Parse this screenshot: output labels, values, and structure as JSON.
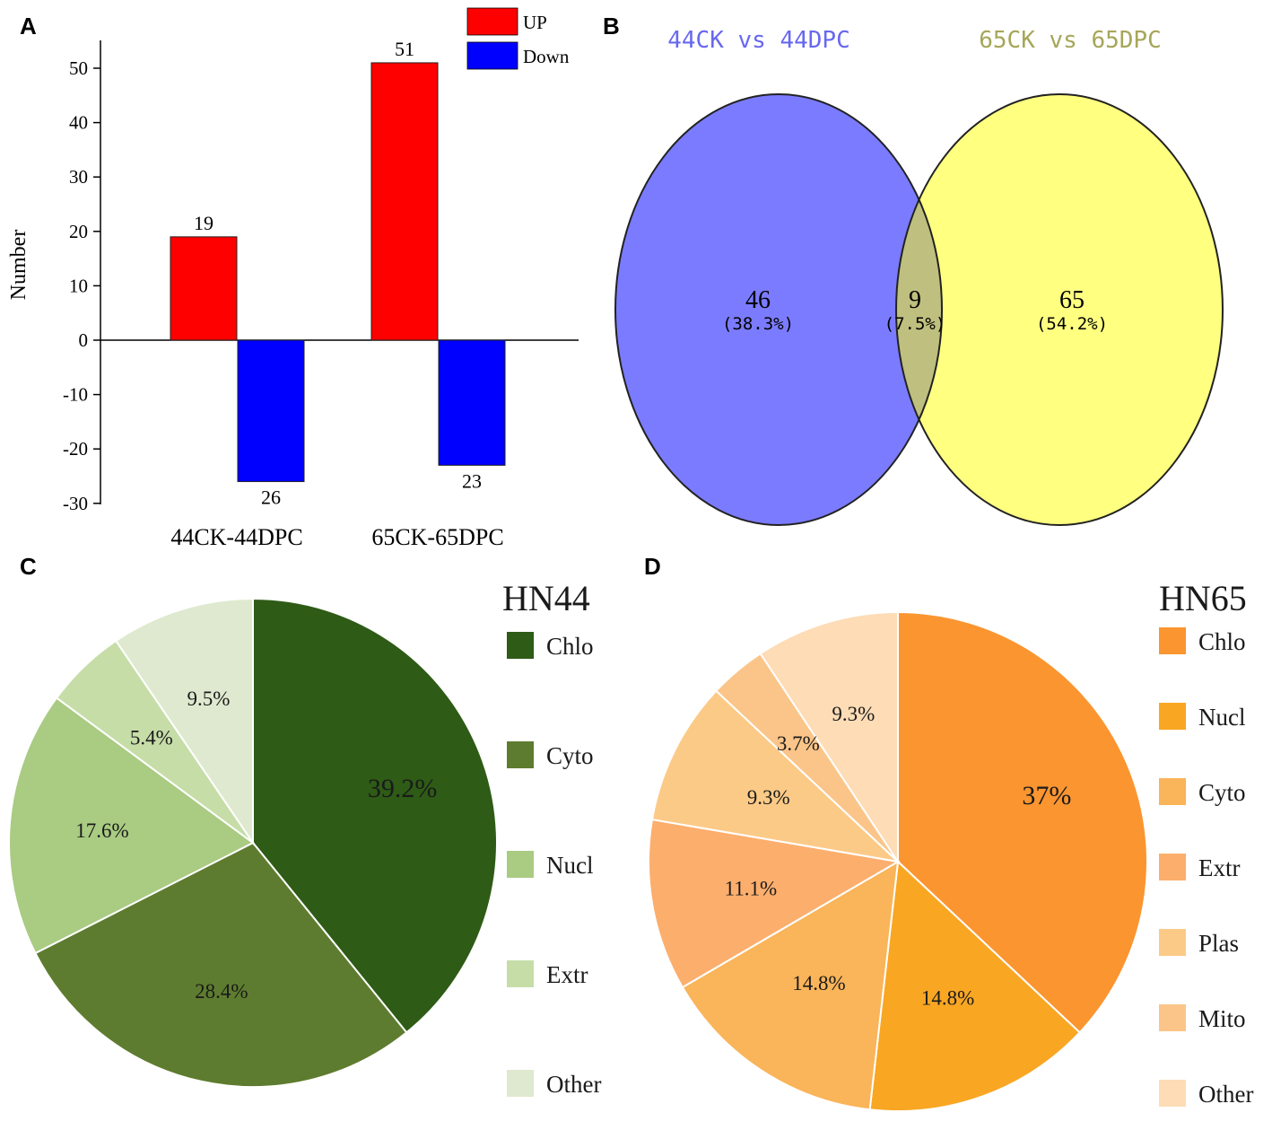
{
  "panels": {
    "a": "A",
    "b": "B",
    "c": "C",
    "d": "D"
  },
  "chart_data": [
    {
      "type": "bar",
      "panel": "A",
      "categories": [
        "44CK-44DPC",
        "65CK-65DPC"
      ],
      "series": [
        {
          "name": "UP",
          "values": [
            19,
            51
          ],
          "labels": [
            "19",
            "51"
          ],
          "color": "#ff0000"
        },
        {
          "name": "Down",
          "values": [
            -26,
            -23
          ],
          "labels": [
            "26",
            "23"
          ],
          "color": "#0000ff"
        }
      ],
      "ylabel": "Number",
      "ylim": [
        -30,
        55
      ],
      "yticks": [
        50,
        40,
        30,
        20,
        10,
        0,
        -10,
        -20,
        -30
      ]
    },
    {
      "type": "venn",
      "panel": "B",
      "sets": [
        {
          "name": "44CK vs 44DPC",
          "color": "#7b7bff",
          "title_color": "#6868f0"
        },
        {
          "name": "65CK vs 65DPC",
          "color": "#ffff80",
          "title_color": "#a6a65a"
        }
      ],
      "regions": [
        {
          "value": "46",
          "percent": "(38.3%)"
        },
        {
          "value": "9",
          "percent": "(7.5%)"
        },
        {
          "value": "65",
          "percent": "(54.2%)"
        }
      ],
      "overlap_color": "#bfbf7f"
    },
    {
      "type": "pie",
      "panel": "C",
      "title": "HN44",
      "slices": [
        {
          "name": "Chlo",
          "value": 39.2,
          "label": "39.2%",
          "color": "#2e5b16"
        },
        {
          "name": "Cyto",
          "value": 28.4,
          "label": "28.4%",
          "color": "#5e7c2f"
        },
        {
          "name": "Nucl",
          "value": 17.6,
          "label": "17.6%",
          "color": "#a9cb82"
        },
        {
          "name": "Extr",
          "value": 5.4,
          "label": "5.4%",
          "color": "#c6dda8"
        },
        {
          "name": "Other",
          "value": 9.5,
          "label": "9.5%",
          "color": "#dfe9cf"
        }
      ]
    },
    {
      "type": "pie",
      "panel": "D",
      "title": "HN65",
      "slices": [
        {
          "name": "Chlo",
          "value": 37,
          "label": "37%",
          "color": "#fb9530"
        },
        {
          "name": "Nucl",
          "value": 14.8,
          "label": "14.8%",
          "color": "#f9a623"
        },
        {
          "name": "Cyto",
          "value": 14.8,
          "label": "14.8%",
          "color": "#fab459"
        },
        {
          "name": "Extr",
          "value": 11.1,
          "label": "11.1%",
          "color": "#fcae6d"
        },
        {
          "name": "Plas",
          "value": 9.3,
          "label": "9.3%",
          "color": "#fcca87"
        },
        {
          "name": "Mito",
          "value": 3.7,
          "label": "3.7%",
          "color": "#fbc589"
        },
        {
          "name": "Other",
          "value": 9.3,
          "label": "9.3%",
          "color": "#fddcb6"
        }
      ]
    }
  ]
}
